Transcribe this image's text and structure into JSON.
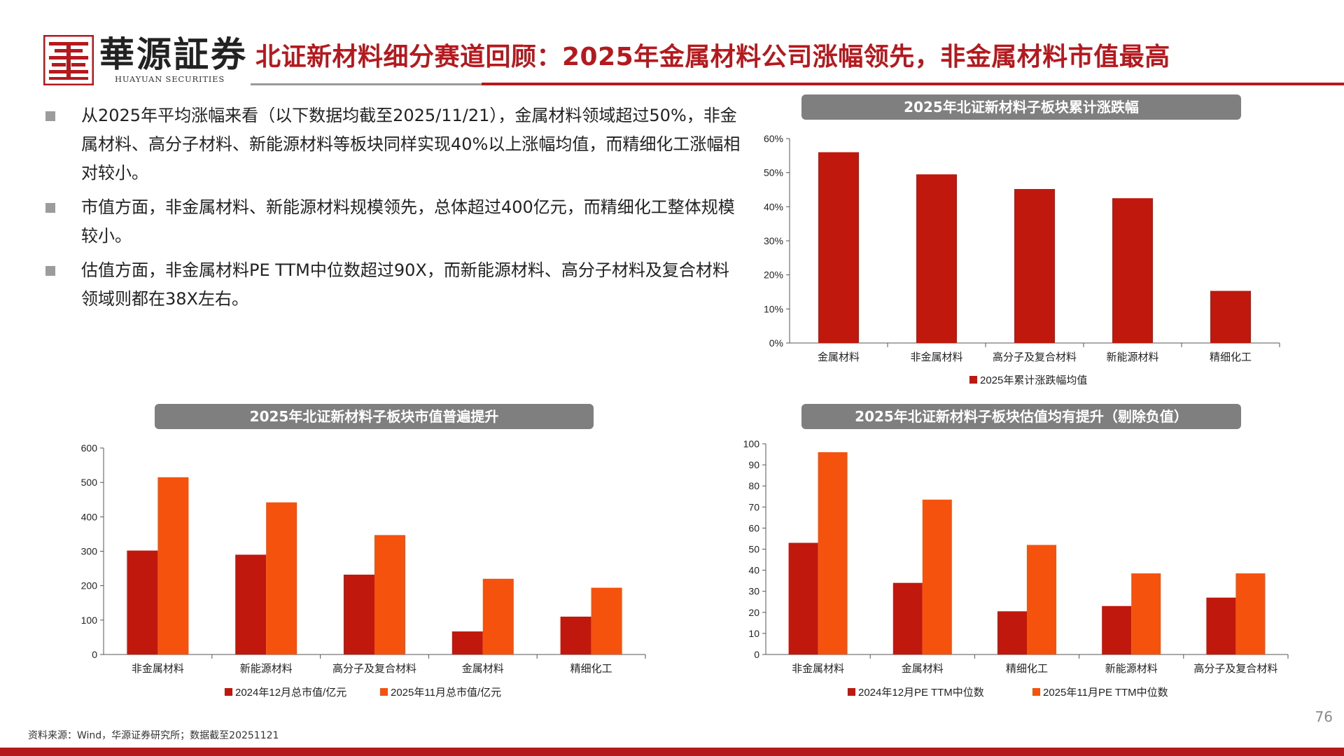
{
  "header": {
    "logo_cn": "華源証券",
    "logo_en": "HUAYUAN SECURITIES",
    "title": "北证新材料细分赛道回顾：2025年金属材料公司涨幅领先，非金属材料市值最高"
  },
  "bullets": [
    "从2025年平均涨幅来看（以下数据均截至2025/11/21），金属材料领域超过50%，非金属材料、高分子材料、新能源材料等板块同样实现40%以上涨幅均值，而精细化工涨幅相对较小。",
    "市值方面，非金属材料、新能源材料规模领先，总体超过400亿元，而精细化工整体规模较小。",
    "估值方面，非金属材料PE TTM中位数超过90X，而新能源材料、高分子材料及复合材料领域则都在38X左右。"
  ],
  "colors": {
    "brand_red": "#b5191d",
    "series_dark": "#c0180c",
    "series_orange": "#f4520d",
    "panel_gray": "#7f7f7f"
  },
  "chart_data": [
    {
      "id": "cumulative",
      "type": "bar",
      "title": "2025年北证新材料子板块累计涨跌幅",
      "categories": [
        "金属材料",
        "非金属材料",
        "高分子及复合材料",
        "新能源材料",
        "精细化工"
      ],
      "series": [
        {
          "name": "2025年累计涨跌幅均值",
          "values": [
            0.56,
            0.495,
            0.452,
            0.425,
            0.153
          ],
          "color": "#c0180c"
        }
      ],
      "ylim": [
        0,
        0.6
      ],
      "yticks": [
        0,
        0.1,
        0.2,
        0.3,
        0.4,
        0.5,
        0.6
      ],
      "yformat": "percent",
      "legend": "bottom",
      "grid": false
    },
    {
      "id": "market_cap",
      "type": "bar",
      "title": "2025年北证新材料子板块市值普遍提升",
      "categories": [
        "非金属材料",
        "新能源材料",
        "高分子及复合材料",
        "金属材料",
        "精细化工"
      ],
      "series": [
        {
          "name": "2024年12月总市值/亿元",
          "values": [
            302,
            290,
            232,
            67,
            110
          ],
          "color": "#c0180c"
        },
        {
          "name": "2025年11月总市值/亿元",
          "values": [
            515,
            442,
            347,
            220,
            194
          ],
          "color": "#f4520d"
        }
      ],
      "ylim": [
        0,
        600
      ],
      "yticks": [
        0,
        100,
        200,
        300,
        400,
        500,
        600
      ],
      "legend": "bottom",
      "grid": false
    },
    {
      "id": "valuation",
      "type": "bar",
      "title": "2025年北证新材料子板块估值均有提升（剔除负值）",
      "categories": [
        "非金属材料",
        "金属材料",
        "精细化工",
        "新能源材料",
        "高分子及复合材料"
      ],
      "series": [
        {
          "name": "2024年12月PE TTM中位数",
          "values": [
            53,
            34,
            20.5,
            23,
            27
          ],
          "color": "#c0180c"
        },
        {
          "name": "2025年11月PE TTM中位数",
          "values": [
            96,
            73.5,
            52,
            38.5,
            38.5
          ],
          "color": "#f4520d"
        }
      ],
      "ylim": [
        0,
        100
      ],
      "yticks": [
        0,
        10,
        20,
        30,
        40,
        50,
        60,
        70,
        80,
        90,
        100
      ],
      "legend": "bottom",
      "grid": false
    }
  ],
  "footer": {
    "source": "资料来源：Wind，华源证券研究所；数据截至20251121",
    "page_number": "76"
  }
}
